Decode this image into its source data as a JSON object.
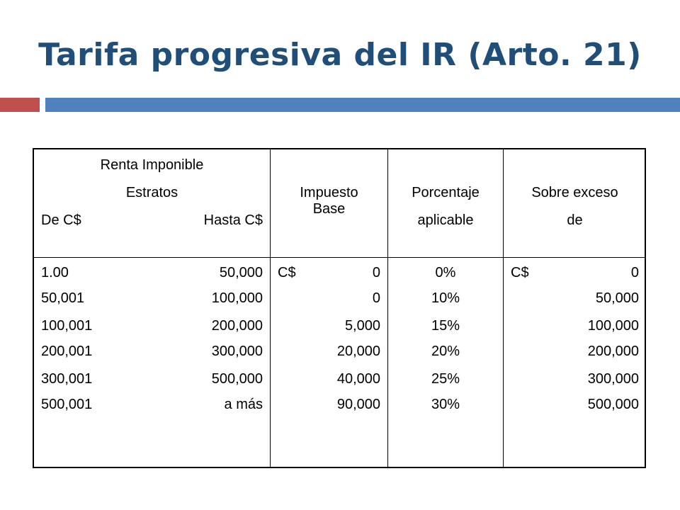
{
  "title": "Tarifa progresiva del IR (Arto. 21)",
  "colors": {
    "title": "#1f4e79",
    "accent_red": "#c0504d",
    "accent_blue": "#4f81bd"
  },
  "table": {
    "header": {
      "col1": {
        "line1": "Renta Imponible",
        "line2": "Estratos",
        "from": "De C$",
        "to": "Hasta C$"
      },
      "col2": {
        "line1": "Impuesto",
        "line2": "Base"
      },
      "col3": {
        "line1": "Porcentaje",
        "line2": "aplicable"
      },
      "col4": {
        "line1": "Sobre exceso",
        "line2": "de"
      }
    },
    "rows": [
      {
        "from": "1.00",
        "to": "50,000",
        "base_prefix": "C$",
        "base": "0",
        "rate": "0%",
        "excess_prefix": "C$",
        "excess": "0"
      },
      {
        "from": "50,001",
        "to": "100,000",
        "base": "0",
        "rate": "10%",
        "excess": "50,000"
      },
      {
        "from": "100,001",
        "to": "200,000",
        "base": "5,000",
        "rate": "15%",
        "excess": "100,000"
      },
      {
        "from": "200,001",
        "to": "300,000",
        "base": "20,000",
        "rate": "20%",
        "excess": "200,000"
      },
      {
        "from": "300,001",
        "to": "500,000",
        "base": "40,000",
        "rate": "25%",
        "excess": "300,000"
      },
      {
        "from": "500,001",
        "to": "a más",
        "base": "90,000",
        "rate": "30%",
        "excess": "500,000"
      }
    ]
  }
}
